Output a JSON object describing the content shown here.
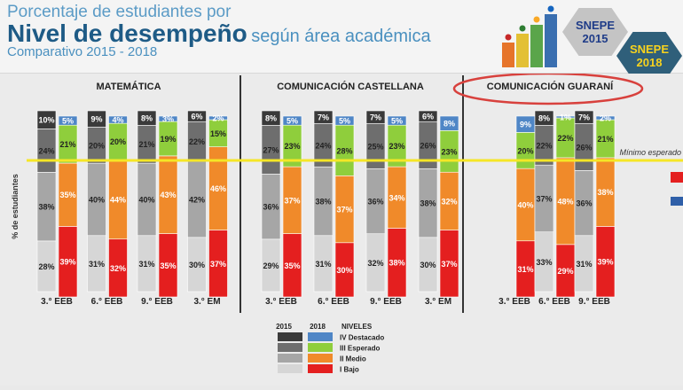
{
  "header": {
    "line1": "Porcentaje de estudiantes por",
    "line2a": "Nivel de desempeño",
    "line2b": "según área académica",
    "line3": "Comparativo 2015 - 2018",
    "badges": [
      {
        "year_label": "SNEPE",
        "year": "2015",
        "color": "#bdbdbd",
        "text_color": "#1f3c88"
      },
      {
        "year_label": "SNEPE",
        "year": "2018",
        "color": "#2f5f7a",
        "text_color": "#f7d21e"
      }
    ],
    "logo_icon": "podium-icon"
  },
  "chart_data": {
    "type": "bar",
    "subtype": "stacked-percent-paired",
    "ylabel": "% de estudiantes",
    "threshold_label": "Mínimo esperado",
    "levels": [
      "I Bajo",
      "II Medio",
      "III Esperado",
      "IV Destacado"
    ],
    "level_colors": {
      "2015": [
        "#d6d6d6",
        "#a6a6a6",
        "#6e6e6e",
        "#3a3a3a"
      ],
      "2018": [
        "#e41f1f",
        "#f08a2a",
        "#8fce3c",
        "#4f86c6"
      ]
    },
    "legend": {
      "col2015": "2015",
      "col2018": "2018",
      "title": "NIVELES",
      "labels": [
        "IV Destacado",
        "III Esperado",
        "II  Medio",
        "I  Bajo"
      ]
    },
    "areas": [
      {
        "title": "MATEMÁTICA",
        "grades": [
          {
            "label": "3.° EEB",
            "v2015": [
              28,
              38,
              24,
              10
            ],
            "v2018": [
              39,
              35,
              21,
              5
            ]
          },
          {
            "label": "6.° EEB",
            "v2015": [
              31,
              40,
              20,
              9
            ],
            "v2018": [
              32,
              44,
              20,
              4
            ]
          },
          {
            "label": "9.° EEB",
            "v2015": [
              31,
              40,
              21,
              8
            ],
            "v2018": [
              35,
              43,
              19,
              3
            ]
          },
          {
            "label": "3.° EM",
            "v2015": [
              30,
              42,
              22,
              6
            ],
            "v2018": [
              37,
              46,
              15,
              2
            ]
          }
        ]
      },
      {
        "title": "COMUNICACIÓN CASTELLANA",
        "grades": [
          {
            "label": "3.° EEB",
            "v2015": [
              29,
              36,
              27,
              8
            ],
            "v2018": [
              35,
              37,
              23,
              5
            ]
          },
          {
            "label": "6.° EEB",
            "v2015": [
              31,
              38,
              24,
              7
            ],
            "v2018": [
              30,
              37,
              28,
              5
            ]
          },
          {
            "label": "9.° EEB",
            "v2015": [
              32,
              36,
              25,
              7
            ],
            "v2018": [
              38,
              34,
              23,
              5
            ]
          },
          {
            "label": "3.° EM",
            "v2015": [
              30,
              38,
              26,
              6
            ],
            "v2018": [
              37,
              32,
              23,
              8
            ]
          }
        ]
      },
      {
        "title": "COMUNICACIÓN GUARANÍ",
        "highlighted": true,
        "grades": [
          {
            "label": "3.° EEB",
            "v2015": [
              null,
              null,
              null,
              null
            ],
            "v2018": [
              31,
              40,
              20,
              9
            ]
          },
          {
            "label": "6.° EEB",
            "v2015": [
              33,
              37,
              22,
              8
            ],
            "v2018": [
              29,
              48,
              22,
              1
            ]
          },
          {
            "label": "9.° EEB",
            "v2015": [
              31,
              36,
              26,
              7
            ],
            "v2018": [
              39,
              38,
              21,
              2
            ]
          }
        ]
      }
    ]
  }
}
